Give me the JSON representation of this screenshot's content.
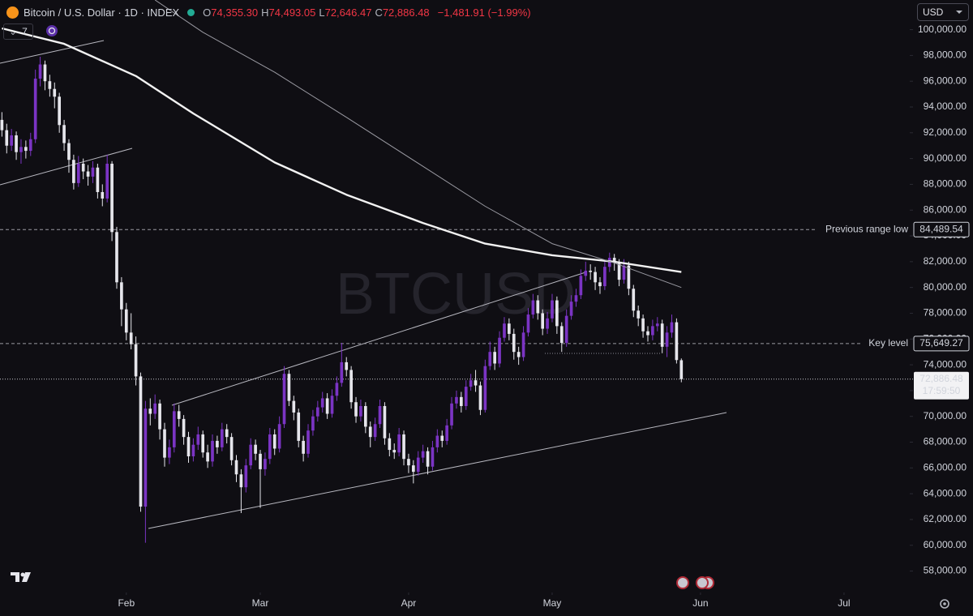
{
  "chart_data": {
    "type": "candlestick",
    "symbol": "Bitcoin / U.S. Dollar · 1D · INDEX",
    "ohlc_keys": [
      "O",
      "H",
      "L",
      "C"
    ],
    "ohlc_labels": [
      "74,355.30",
      "74,493.05",
      "72,646.47",
      "72,886.48"
    ],
    "change_label": "−1,481.91 (−1.99%)",
    "indicator_count": "7",
    "currency": "USD",
    "watermark": "BTCUSD",
    "up_color": "#7b34c4",
    "down_color": "#e6e6ec",
    "grid": false,
    "xlim": [
      -0.4,
      189.4
    ],
    "ylim": [
      56400,
      102300
    ],
    "xticks": [
      {
        "value": 26,
        "label": "Feb"
      },
      {
        "value": 54,
        "label": "Mar"
      },
      {
        "value": 85,
        "label": "Apr"
      },
      {
        "value": 115,
        "label": "May"
      },
      {
        "value": 146,
        "label": "Jun"
      },
      {
        "value": 176,
        "label": "Jul"
      }
    ],
    "yticks": [
      {
        "value": 58000,
        "label": "58,000.00"
      },
      {
        "value": 60000,
        "label": "60,000.00"
      },
      {
        "value": 62000,
        "label": "62,000.00"
      },
      {
        "value": 64000,
        "label": "64,000.00"
      },
      {
        "value": 66000,
        "label": "66,000.00"
      },
      {
        "value": 68000,
        "label": "68,000.00"
      },
      {
        "value": 70000,
        "label": "70,000.00"
      },
      {
        "value": 72000,
        "label": "72,000.00"
      },
      {
        "value": 74000,
        "label": "74,000.00"
      },
      {
        "value": 76000,
        "label": "76,000.00"
      },
      {
        "value": 78000,
        "label": "78,000.00"
      },
      {
        "value": 80000,
        "label": "80,000.00"
      },
      {
        "value": 82000,
        "label": "82,000.00"
      },
      {
        "value": 84000,
        "label": "84,000.00"
      },
      {
        "value": 86000,
        "label": "86,000.00"
      },
      {
        "value": 88000,
        "label": "88,000.00"
      },
      {
        "value": 90000,
        "label": "90,000.00"
      },
      {
        "value": 92000,
        "label": "92,000.00"
      },
      {
        "value": 94000,
        "label": "94,000.00"
      },
      {
        "value": 96000,
        "label": "96,000.00"
      },
      {
        "value": 98000,
        "label": "98,000.00"
      },
      {
        "value": 100000,
        "label": "100,000.00"
      }
    ],
    "levels": [
      {
        "name": "Previous range low",
        "value": 84489.54,
        "label": "84,489.54"
      },
      {
        "name": "Key level",
        "value": 75649.27,
        "label": "75,649.27"
      }
    ],
    "last_label": "72,886.48",
    "countdown": "17:59:50",
    "moving_averages": [
      {
        "color": "#f2f2f2",
        "width": 2.4,
        "x": [
          0,
          13,
          28,
          40,
          57,
          72,
          88,
          101,
          115,
          128,
          142
        ],
        "values": [
          100100,
          98900,
          96400,
          93500,
          89700,
          87200,
          85000,
          83400,
          82500,
          82000,
          81200
        ]
      },
      {
        "color": "#9a9aa2",
        "width": 1,
        "x": [
          32,
          42,
          57,
          72,
          88,
          101,
          115,
          128,
          142
        ],
        "values": [
          102300,
          99800,
          96700,
          93200,
          89400,
          86300,
          83400,
          81900,
          80000
        ]
      }
    ],
    "candles": [
      {
        "open": 93000,
        "high": 93600,
        "low": 91700,
        "close": 92200
      },
      {
        "open": 92200,
        "high": 92700,
        "low": 90400,
        "close": 91000
      },
      {
        "open": 91000,
        "high": 92300,
        "low": 90600,
        "close": 91800
      },
      {
        "open": 91800,
        "high": 92100,
        "low": 89900,
        "close": 90500
      },
      {
        "open": 90500,
        "high": 91500,
        "low": 89600,
        "close": 90900
      },
      {
        "open": 90900,
        "high": 91400,
        "low": 90000,
        "close": 90600
      },
      {
        "open": 90600,
        "high": 92000,
        "low": 90200,
        "close": 91500
      },
      {
        "open": 91500,
        "high": 96900,
        "low": 91200,
        "close": 96200
      },
      {
        "open": 96200,
        "high": 97900,
        "low": 95600,
        "close": 97300
      },
      {
        "open": 97300,
        "high": 97600,
        "low": 95300,
        "close": 96000
      },
      {
        "open": 96000,
        "high": 96500,
        "low": 94800,
        "close": 95400
      },
      {
        "open": 95400,
        "high": 95900,
        "low": 93900,
        "close": 94800
      },
      {
        "open": 94800,
        "high": 95100,
        "low": 92000,
        "close": 92600
      },
      {
        "open": 92600,
        "high": 93000,
        "low": 90600,
        "close": 91200
      },
      {
        "open": 91200,
        "high": 91500,
        "low": 88900,
        "close": 89900
      },
      {
        "open": 89900,
        "high": 90300,
        "low": 87600,
        "close": 88100
      },
      {
        "open": 88100,
        "high": 90200,
        "low": 87800,
        "close": 89600
      },
      {
        "open": 89600,
        "high": 90000,
        "low": 88400,
        "close": 89000
      },
      {
        "open": 89000,
        "high": 89500,
        "low": 87900,
        "close": 88600
      },
      {
        "open": 88600,
        "high": 89800,
        "low": 88100,
        "close": 89300
      },
      {
        "open": 89300,
        "high": 89600,
        "low": 86900,
        "close": 87400
      },
      {
        "open": 87400,
        "high": 88000,
        "low": 86300,
        "close": 86900
      },
      {
        "open": 86900,
        "high": 90300,
        "low": 86600,
        "close": 89600
      },
      {
        "open": 89600,
        "high": 89800,
        "low": 83600,
        "close": 84300
      },
      {
        "open": 84300,
        "high": 84700,
        "low": 79900,
        "close": 80400
      },
      {
        "open": 80400,
        "high": 80800,
        "low": 77000,
        "close": 78300
      },
      {
        "open": 78300,
        "high": 78800,
        "low": 75900,
        "close": 76500
      },
      {
        "open": 76500,
        "high": 78000,
        "low": 75200,
        "close": 75600
      },
      {
        "open": 75600,
        "high": 76200,
        "low": 72400,
        "close": 73100
      },
      {
        "open": 73100,
        "high": 73400,
        "low": 62600,
        "close": 63000
      },
      {
        "open": 63000,
        "high": 71200,
        "low": 60200,
        "close": 70600
      },
      {
        "open": 70600,
        "high": 71400,
        "low": 69300,
        "close": 70200
      },
      {
        "open": 70200,
        "high": 71700,
        "low": 69800,
        "close": 71000
      },
      {
        "open": 71000,
        "high": 71300,
        "low": 68200,
        "close": 69000
      },
      {
        "open": 69000,
        "high": 69500,
        "low": 66100,
        "close": 66800
      },
      {
        "open": 66800,
        "high": 68200,
        "low": 66300,
        "close": 67600
      },
      {
        "open": 67600,
        "high": 71000,
        "low": 67200,
        "close": 70400
      },
      {
        "open": 70400,
        "high": 70900,
        "low": 69200,
        "close": 69800
      },
      {
        "open": 69800,
        "high": 70100,
        "low": 67800,
        "close": 68400
      },
      {
        "open": 68400,
        "high": 68800,
        "low": 66400,
        "close": 66900
      },
      {
        "open": 66900,
        "high": 68300,
        "low": 66500,
        "close": 67800
      },
      {
        "open": 67800,
        "high": 69200,
        "low": 67400,
        "close": 68600
      },
      {
        "open": 68600,
        "high": 68900,
        "low": 66800,
        "close": 67200
      },
      {
        "open": 67200,
        "high": 67800,
        "low": 66000,
        "close": 66500
      },
      {
        "open": 66500,
        "high": 68600,
        "low": 66100,
        "close": 68100
      },
      {
        "open": 68100,
        "high": 68500,
        "low": 67100,
        "close": 67600
      },
      {
        "open": 67600,
        "high": 69500,
        "low": 67300,
        "close": 69000
      },
      {
        "open": 69000,
        "high": 69400,
        "low": 67900,
        "close": 68400
      },
      {
        "open": 68400,
        "high": 68700,
        "low": 66200,
        "close": 66600
      },
      {
        "open": 66600,
        "high": 67000,
        "low": 64900,
        "close": 65500
      },
      {
        "open": 65500,
        "high": 65900,
        "low": 62500,
        "close": 64500
      },
      {
        "open": 64500,
        "high": 66700,
        "low": 64100,
        "close": 66200
      },
      {
        "open": 66200,
        "high": 68300,
        "low": 65900,
        "close": 67800
      },
      {
        "open": 67800,
        "high": 68200,
        "low": 66600,
        "close": 67100
      },
      {
        "open": 67100,
        "high": 67400,
        "low": 62900,
        "close": 65900
      },
      {
        "open": 65900,
        "high": 67200,
        "low": 65400,
        "close": 66700
      },
      {
        "open": 66700,
        "high": 69100,
        "low": 66300,
        "close": 68600
      },
      {
        "open": 68600,
        "high": 69000,
        "low": 67000,
        "close": 67500
      },
      {
        "open": 67500,
        "high": 70000,
        "low": 67200,
        "close": 69400
      },
      {
        "open": 69400,
        "high": 73900,
        "low": 69100,
        "close": 73300
      },
      {
        "open": 73300,
        "high": 73600,
        "low": 70800,
        "close": 71200
      },
      {
        "open": 71200,
        "high": 71600,
        "low": 69700,
        "close": 70300
      },
      {
        "open": 70300,
        "high": 70600,
        "low": 67600,
        "close": 68100
      },
      {
        "open": 68100,
        "high": 68500,
        "low": 66500,
        "close": 67100
      },
      {
        "open": 67100,
        "high": 69400,
        "low": 66800,
        "close": 68900
      },
      {
        "open": 68900,
        "high": 70500,
        "low": 68500,
        "close": 70000
      },
      {
        "open": 70000,
        "high": 71200,
        "low": 69600,
        "close": 70700
      },
      {
        "open": 70700,
        "high": 71900,
        "low": 70300,
        "close": 71400
      },
      {
        "open": 71400,
        "high": 71800,
        "low": 69800,
        "close": 70200
      },
      {
        "open": 70200,
        "high": 72100,
        "low": 69900,
        "close": 71600
      },
      {
        "open": 71600,
        "high": 73100,
        "low": 71200,
        "close": 72600
      },
      {
        "open": 72600,
        "high": 75700,
        "low": 72300,
        "close": 74200
      },
      {
        "open": 74200,
        "high": 74600,
        "low": 73100,
        "close": 73600
      },
      {
        "open": 73600,
        "high": 73900,
        "low": 70600,
        "close": 71100
      },
      {
        "open": 71100,
        "high": 71500,
        "low": 69500,
        "close": 70000
      },
      {
        "open": 70000,
        "high": 71300,
        "low": 69600,
        "close": 70800
      },
      {
        "open": 70800,
        "high": 71100,
        "low": 68700,
        "close": 69200
      },
      {
        "open": 69200,
        "high": 69600,
        "low": 67600,
        "close": 68400
      },
      {
        "open": 68400,
        "high": 69900,
        "low": 68100,
        "close": 69400
      },
      {
        "open": 69400,
        "high": 71300,
        "low": 69100,
        "close": 70800
      },
      {
        "open": 70800,
        "high": 71100,
        "low": 67800,
        "close": 68300
      },
      {
        "open": 68300,
        "high": 68700,
        "low": 66900,
        "close": 67400
      },
      {
        "open": 67400,
        "high": 67900,
        "low": 66700,
        "close": 67200
      },
      {
        "open": 67200,
        "high": 69100,
        "low": 66900,
        "close": 68600
      },
      {
        "open": 68600,
        "high": 68900,
        "low": 66200,
        "close": 66700
      },
      {
        "open": 66700,
        "high": 67100,
        "low": 65600,
        "close": 66200
      },
      {
        "open": 66200,
        "high": 66600,
        "low": 64800,
        "close": 65700
      },
      {
        "open": 65700,
        "high": 67300,
        "low": 65400,
        "close": 66800
      },
      {
        "open": 66800,
        "high": 67800,
        "low": 66400,
        "close": 67300
      },
      {
        "open": 67300,
        "high": 67600,
        "low": 65500,
        "close": 66100
      },
      {
        "open": 66100,
        "high": 68100,
        "low": 65800,
        "close": 67600
      },
      {
        "open": 67600,
        "high": 69000,
        "low": 67200,
        "close": 68500
      },
      {
        "open": 68500,
        "high": 68900,
        "low": 67600,
        "close": 68100
      },
      {
        "open": 68100,
        "high": 69800,
        "low": 67800,
        "close": 69300
      },
      {
        "open": 69300,
        "high": 71500,
        "low": 69000,
        "close": 71000
      },
      {
        "open": 71000,
        "high": 72000,
        "low": 70600,
        "close": 71500
      },
      {
        "open": 71500,
        "high": 71900,
        "low": 70300,
        "close": 70800
      },
      {
        "open": 70800,
        "high": 72800,
        "low": 70500,
        "close": 72300
      },
      {
        "open": 72300,
        "high": 73300,
        "low": 72000,
        "close": 72800
      },
      {
        "open": 72800,
        "high": 73600,
        "low": 71900,
        "close": 72400
      },
      {
        "open": 72400,
        "high": 72700,
        "low": 70100,
        "close": 70500
      },
      {
        "open": 70500,
        "high": 74400,
        "low": 70300,
        "close": 73900
      },
      {
        "open": 73900,
        "high": 75800,
        "low": 73600,
        "close": 75000
      },
      {
        "open": 75000,
        "high": 75400,
        "low": 73600,
        "close": 74100
      },
      {
        "open": 74100,
        "high": 76600,
        "low": 73800,
        "close": 76100
      },
      {
        "open": 76100,
        "high": 77700,
        "low": 75800,
        "close": 77200
      },
      {
        "open": 77200,
        "high": 77600,
        "low": 75900,
        "close": 76400
      },
      {
        "open": 76400,
        "high": 76800,
        "low": 74400,
        "close": 75000
      },
      {
        "open": 75000,
        "high": 75400,
        "low": 74000,
        "close": 74600
      },
      {
        "open": 74600,
        "high": 77000,
        "low": 74300,
        "close": 76500
      },
      {
        "open": 76500,
        "high": 78400,
        "low": 76200,
        "close": 77900
      },
      {
        "open": 77900,
        "high": 79500,
        "low": 77600,
        "close": 79000
      },
      {
        "open": 79000,
        "high": 79400,
        "low": 77500,
        "close": 78000
      },
      {
        "open": 78000,
        "high": 78300,
        "low": 76300,
        "close": 76800
      },
      {
        "open": 76800,
        "high": 78100,
        "low": 76400,
        "close": 77600
      },
      {
        "open": 77600,
        "high": 79500,
        "low": 77300,
        "close": 79000
      },
      {
        "open": 79000,
        "high": 79300,
        "low": 76400,
        "close": 77000
      },
      {
        "open": 77000,
        "high": 77300,
        "low": 75000,
        "close": 75700
      },
      {
        "open": 75700,
        "high": 78300,
        "low": 75400,
        "close": 77800
      },
      {
        "open": 77800,
        "high": 79400,
        "low": 77500,
        "close": 78900
      },
      {
        "open": 78900,
        "high": 79900,
        "low": 78500,
        "close": 79400
      },
      {
        "open": 79400,
        "high": 81400,
        "low": 79100,
        "close": 80900
      },
      {
        "open": 80900,
        "high": 82000,
        "low": 80500,
        "close": 81300
      },
      {
        "open": 81300,
        "high": 81800,
        "low": 80600,
        "close": 81200
      },
      {
        "open": 81200,
        "high": 81600,
        "low": 79800,
        "close": 80400
      },
      {
        "open": 80400,
        "high": 80800,
        "low": 79500,
        "close": 80100
      },
      {
        "open": 80100,
        "high": 82100,
        "low": 79800,
        "close": 81600
      },
      {
        "open": 81600,
        "high": 82700,
        "low": 81200,
        "close": 82300
      },
      {
        "open": 82300,
        "high": 82600,
        "low": 81300,
        "close": 81900
      },
      {
        "open": 81900,
        "high": 82200,
        "low": 80100,
        "close": 80600
      },
      {
        "open": 80600,
        "high": 82200,
        "low": 80300,
        "close": 81700
      },
      {
        "open": 81700,
        "high": 82000,
        "low": 79400,
        "close": 79900
      },
      {
        "open": 79900,
        "high": 80200,
        "low": 77700,
        "close": 78200
      },
      {
        "open": 78200,
        "high": 78600,
        "low": 77000,
        "close": 77600
      },
      {
        "open": 77600,
        "high": 77900,
        "low": 76100,
        "close": 76600
      },
      {
        "open": 76600,
        "high": 77000,
        "low": 75800,
        "close": 76300
      },
      {
        "open": 76300,
        "high": 77500,
        "low": 75900,
        "close": 77000
      },
      {
        "open": 77000,
        "high": 77700,
        "low": 76600,
        "close": 77200
      },
      {
        "open": 77200,
        "high": 77500,
        "low": 74900,
        "close": 75400
      },
      {
        "open": 75400,
        "high": 77000,
        "low": 74600,
        "close": 76500
      },
      {
        "open": 76500,
        "high": 77900,
        "low": 76100,
        "close": 77300
      },
      {
        "open": 77300,
        "high": 77600,
        "low": 74100,
        "close": 74368.39
      },
      {
        "open": 74355.3,
        "high": 74493.05,
        "low": 72646.47,
        "close": 72886.48
      }
    ]
  }
}
